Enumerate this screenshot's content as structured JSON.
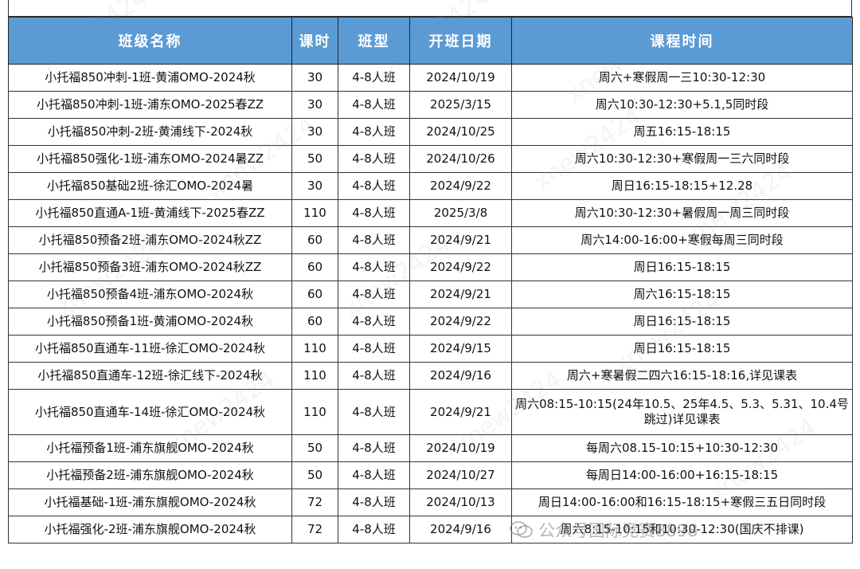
{
  "table": {
    "headers": [
      "班级名称",
      "课时",
      "班型",
      "开班日期",
      "课程时间"
    ],
    "rows": [
      [
        "小托福850冲刺-1班-黄浦OMO-2024秋",
        "30",
        "4-8人班",
        "2024/10/19",
        "周六+寒假周一三10:30-12:30"
      ],
      [
        "小托福850冲刺-1班-浦东OMO-2025春ZZ",
        "30",
        "4-8人班",
        "2025/3/15",
        "周六10:30-12:30+5.1,5同时段"
      ],
      [
        "小托福850冲刺-2班-黄浦线下-2024秋",
        "30",
        "4-8人班",
        "2024/10/25",
        "周五16:15-18:15"
      ],
      [
        "小托福850强化-1班-浦东OMO-2024暑ZZ",
        "50",
        "4-8人班",
        "2024/10/26",
        "周六10:30-12:30+寒假周一三六同时段"
      ],
      [
        "小托福850基础2班-徐汇OMO-2024暑",
        "30",
        "4-8人班",
        "2024/9/22",
        "周日16:15-18:15+12.28"
      ],
      [
        "小托福850直通A-1班-黄浦线下-2025春ZZ",
        "110",
        "4-8人班",
        "2025/3/8",
        "周六10:30-12:30+暑假周一周三同时段"
      ],
      [
        "小托福850预备2班-浦东OMO-2024秋ZZ",
        "60",
        "4-8人班",
        "2024/9/21",
        "周六14:00-16:00+寒假每周三同时段"
      ],
      [
        "小托福850预备3班-浦东OMO-2024秋ZZ",
        "60",
        "4-8人班",
        "2024/9/22",
        "周日16:15-18:15"
      ],
      [
        "小托福850预备4班-浦东OMO-2024秋",
        "60",
        "4-8人班",
        "2024/9/21",
        "周六16:15-18:15"
      ],
      [
        "小托福850预备1班-黄浦OMO-2024秋",
        "60",
        "4-8人班",
        "2024/9/22",
        "周日16:15-18:15"
      ],
      [
        "小托福850直通车-11班-徐汇OMO-2024秋",
        "110",
        "4-8人班",
        "2024/9/15",
        "周日16:15-18:15"
      ],
      [
        "小托福850直通车-12班-徐汇线下-2024秋",
        "110",
        "4-8人班",
        "2024/9/16",
        "周六+寒暑假二四六16:15-18:16,详见课表"
      ],
      [
        "小托福850直通车-14班-徐汇OMO-2024秋",
        "110",
        "4-8人班",
        "2024/9/21",
        "周六08:15-10:15(24年10.5、25年4.5、5.3、5.31、10.4号跳过)详见课表"
      ],
      [
        "小托福预备1班-浦东旗舰OMO-2024秋",
        "50",
        "4-8人班",
        "2024/10/19",
        "每周六08.15-10:15+10:30-12:30"
      ],
      [
        "小托福预备2班-浦东旗舰OMO-2024秋",
        "50",
        "4-8人班",
        "2024/10/27",
        "每周日14:00-16:00+16:15-18:15"
      ],
      [
        "小托福基础-1班-浦东旗舰OMO-2024秋",
        "72",
        "4-8人班",
        "2024/10/13",
        "周日14:00-16:00和16:15-18:15+寒假三五日同时段"
      ],
      [
        "小托福强化-2班-浦东旗舰OMO-2024秋",
        "72",
        "4-8人班",
        "2024/9/16",
        "周六8:15-10:15和10:30-12:30(国庆不排课)"
      ]
    ]
  },
  "watermark": {
    "text": "xnew2424"
  },
  "footer_mark": {
    "text": "公众号国际竞赛8898",
    "icon": "wechat-icon"
  },
  "colors": {
    "header_bg": "#5b9bd5",
    "header_text": "#ffffff",
    "border": "#333333"
  }
}
